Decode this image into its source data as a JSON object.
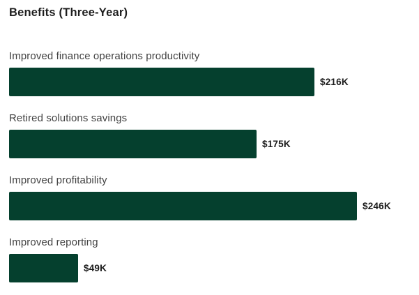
{
  "colors": {
    "background": "#FFFFFF",
    "bar": "#05402E",
    "title_text": "#1E1E1E",
    "category_text": "#424242",
    "value_text": "#1A1A1A"
  },
  "chart_data": {
    "type": "bar",
    "orientation": "horizontal",
    "title": "Benefits (Three-Year)",
    "categories": [
      "Improved finance operations productivity",
      "Retired solutions savings",
      "Improved profitability",
      "Improved reporting"
    ],
    "values": [
      216,
      175,
      246,
      49
    ],
    "value_labels": [
      "$216K",
      "$175K",
      "$246K",
      "$49K"
    ],
    "xlim": [
      0,
      246
    ],
    "grid": false,
    "legend": false,
    "axis_visible": false
  }
}
